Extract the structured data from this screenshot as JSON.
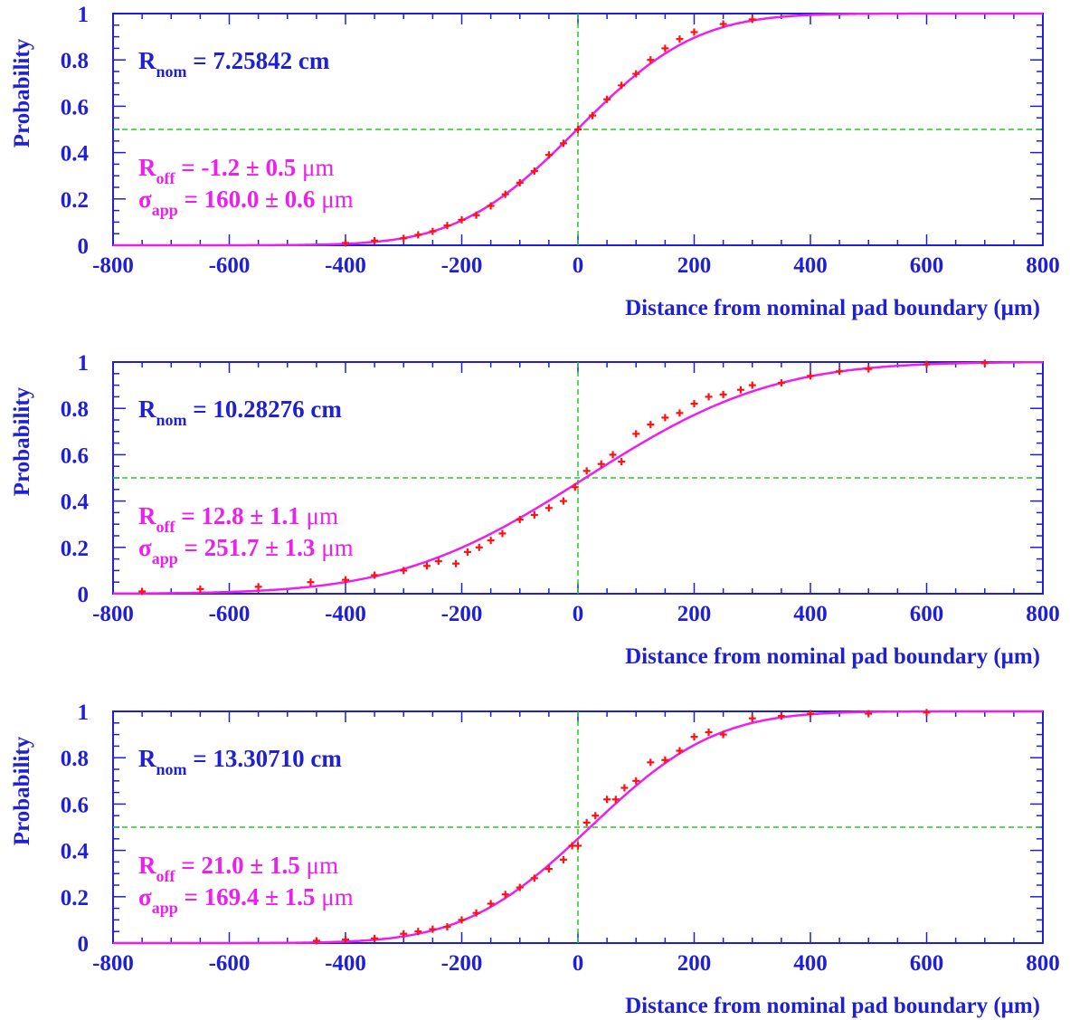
{
  "chart_data": [
    {
      "type": "scatter",
      "xlabel": "Distance from nominal pad boundary (",
      "xlabel_unit": "μm",
      "xlabel_close": ")",
      "ylabel": "Probability",
      "xlim": [
        -800,
        800
      ],
      "ylim": [
        0,
        1
      ],
      "xticks": [
        -800,
        -600,
        -400,
        -200,
        0,
        200,
        400,
        600,
        800
      ],
      "xtick_labels": [
        "-800",
        "-600",
        "-400",
        "-200",
        "0",
        "200",
        "400",
        "600",
        "800"
      ],
      "yticks": [
        0,
        0.2,
        0.4,
        0.6,
        0.8,
        1
      ],
      "ytick_labels": [
        "0",
        "0.2",
        "0.4",
        "0.6",
        "0.8",
        "1"
      ],
      "reference_lines": {
        "x": 0,
        "y": 0.5,
        "color": "#22cc22"
      },
      "annotation_nom": {
        "sym": "R",
        "sub": "nom",
        "text": " = 7.25842 cm"
      },
      "annotation_off": {
        "sym": "R",
        "sub": "off",
        "text": " = -1.2 ± 0.5 ",
        "unit": "μm"
      },
      "annotation_sigma": {
        "sym": "σ",
        "sub": "app",
        "text": " = 160.0 ± 0.6 ",
        "unit": "μm"
      },
      "fit": {
        "r_off": -1.2,
        "sigma_app": 160.0,
        "color": "#ee1eee"
      },
      "points": {
        "color": "#ff1111",
        "x": [
          -400,
          -350,
          -300,
          -275,
          -250,
          -225,
          -200,
          -175,
          -150,
          -125,
          -100,
          -75,
          -50,
          -25,
          0,
          25,
          50,
          75,
          100,
          125,
          150,
          175,
          200,
          250,
          300
        ],
        "y": [
          0.01,
          0.02,
          0.03,
          0.045,
          0.06,
          0.085,
          0.11,
          0.13,
          0.17,
          0.22,
          0.27,
          0.32,
          0.39,
          0.44,
          0.5,
          0.56,
          0.63,
          0.69,
          0.74,
          0.8,
          0.85,
          0.89,
          0.92,
          0.955,
          0.975
        ]
      }
    },
    {
      "type": "scatter",
      "xlabel": "Distance from nominal pad boundary (",
      "xlabel_unit": "μm",
      "xlabel_close": ")",
      "ylabel": "Probability",
      "xlim": [
        -800,
        800
      ],
      "ylim": [
        0,
        1
      ],
      "xticks": [
        -800,
        -600,
        -400,
        -200,
        0,
        200,
        400,
        600,
        800
      ],
      "xtick_labels": [
        "-800",
        "-600",
        "-400",
        "-200",
        "0",
        "200",
        "400",
        "600",
        "800"
      ],
      "yticks": [
        0,
        0.2,
        0.4,
        0.6,
        0.8,
        1
      ],
      "ytick_labels": [
        "0",
        "0.2",
        "0.4",
        "0.6",
        "0.8",
        "1"
      ],
      "reference_lines": {
        "x": 0,
        "y": 0.5,
        "color": "#22cc22"
      },
      "annotation_nom": {
        "sym": "R",
        "sub": "nom",
        "text": " = 10.28276 cm"
      },
      "annotation_off": {
        "sym": "R",
        "sub": "off",
        "text": " = 12.8 ± 1.1 ",
        "unit": "μm"
      },
      "annotation_sigma": {
        "sym": "σ",
        "sub": "app",
        "text": " = 251.7 ± 1.3 ",
        "unit": "μm"
      },
      "fit": {
        "r_off": 12.8,
        "sigma_app": 251.7,
        "color": "#ee1eee"
      },
      "points": {
        "color": "#ff1111",
        "x": [
          -750,
          -650,
          -550,
          -460,
          -400,
          -350,
          -300,
          -260,
          -240,
          -210,
          -190,
          -170,
          -150,
          -130,
          -100,
          -75,
          -50,
          -25,
          -5,
          15,
          40,
          60,
          75,
          100,
          125,
          150,
          175,
          200,
          225,
          250,
          280,
          300,
          350,
          400,
          450,
          500,
          600,
          700
        ],
        "y": [
          0.01,
          0.02,
          0.03,
          0.05,
          0.06,
          0.08,
          0.1,
          0.12,
          0.14,
          0.13,
          0.18,
          0.2,
          0.23,
          0.26,
          0.32,
          0.34,
          0.37,
          0.4,
          0.46,
          0.53,
          0.56,
          0.6,
          0.57,
          0.69,
          0.73,
          0.76,
          0.78,
          0.82,
          0.85,
          0.86,
          0.88,
          0.9,
          0.91,
          0.94,
          0.96,
          0.97,
          0.99,
          0.995
        ]
      }
    },
    {
      "type": "scatter",
      "xlabel": "Distance from nominal pad boundary (",
      "xlabel_unit": "μm",
      "xlabel_close": ")",
      "ylabel": "Probability",
      "xlim": [
        -800,
        800
      ],
      "ylim": [
        0,
        1
      ],
      "xticks": [
        -800,
        -600,
        -400,
        -200,
        0,
        200,
        400,
        600,
        800
      ],
      "xtick_labels": [
        "-800",
        "-600",
        "-400",
        "-200",
        "0",
        "200",
        "400",
        "600",
        "800"
      ],
      "yticks": [
        0,
        0.2,
        0.4,
        0.6,
        0.8,
        1
      ],
      "ytick_labels": [
        "0",
        "0.2",
        "0.4",
        "0.6",
        "0.8",
        "1"
      ],
      "reference_lines": {
        "x": 0,
        "y": 0.5,
        "color": "#22cc22"
      },
      "annotation_nom": {
        "sym": "R",
        "sub": "nom",
        "text": " = 13.30710 cm"
      },
      "annotation_off": {
        "sym": "R",
        "sub": "off",
        "text": " = 21.0 ± 1.5 ",
        "unit": "μm"
      },
      "annotation_sigma": {
        "sym": "σ",
        "sub": "app",
        "text": " = 169.4 ± 1.5 ",
        "unit": "μm"
      },
      "fit": {
        "r_off": 21.0,
        "sigma_app": 169.4,
        "color": "#ee1eee"
      },
      "points": {
        "color": "#ff1111",
        "x": [
          -450,
          -400,
          -350,
          -300,
          -275,
          -250,
          -225,
          -200,
          -175,
          -150,
          -125,
          -100,
          -75,
          -50,
          -25,
          -10,
          0,
          15,
          30,
          50,
          65,
          80,
          100,
          125,
          150,
          175,
          200,
          225,
          250,
          300,
          350,
          400,
          500,
          600
        ],
        "y": [
          0.01,
          0.015,
          0.02,
          0.04,
          0.05,
          0.06,
          0.07,
          0.1,
          0.13,
          0.17,
          0.21,
          0.24,
          0.28,
          0.32,
          0.36,
          0.42,
          0.42,
          0.52,
          0.55,
          0.62,
          0.62,
          0.67,
          0.7,
          0.78,
          0.79,
          0.83,
          0.89,
          0.91,
          0.9,
          0.97,
          0.98,
          0.99,
          0.99,
          0.995
        ]
      }
    }
  ]
}
